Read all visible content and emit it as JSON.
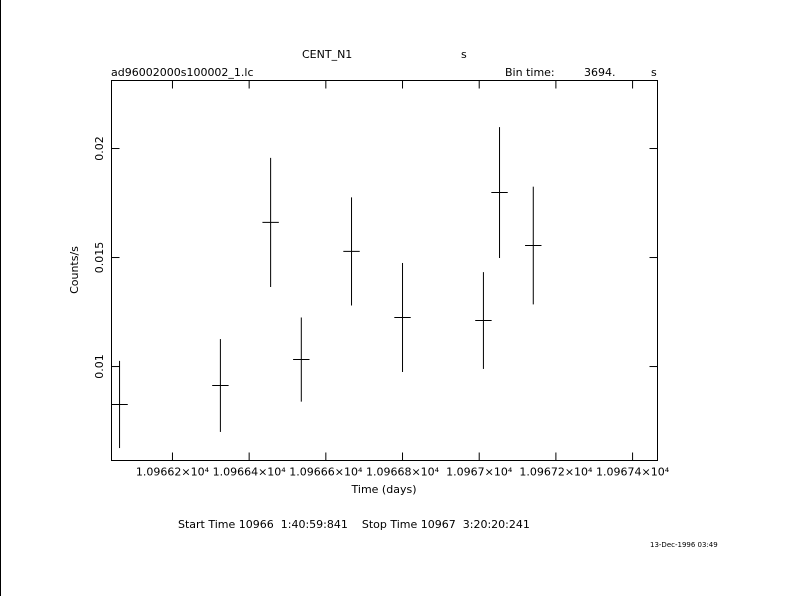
{
  "chart_data": {
    "type": "scatter",
    "header": {
      "object": "CENT_N1",
      "object_unit": "s",
      "file": "ad96002000s100002_1.lc",
      "bin_label": "Bin time:",
      "bin_value": "3694.",
      "bin_unit": "s"
    },
    "xlabel": "Time (days)",
    "ylabel": "Counts/s",
    "footer": "Start Time 10966  1:40:59:841    Stop Time 10967  3:20:20:241",
    "timestamp": "13-Dec-1996 03:49",
    "color": "#000000",
    "x": [
      10966.062,
      10966.325,
      10966.456,
      10966.536,
      10966.667,
      10966.8,
      10967.011,
      10967.053,
      10967.141
    ],
    "xerr": [
      0.0214,
      0.0214,
      0.0214,
      0.0214,
      0.0214,
      0.0214,
      0.0214,
      0.0214,
      0.0214
    ],
    "values": [
      0.00826,
      0.00913,
      0.01661,
      0.01032,
      0.01528,
      0.01225,
      0.01211,
      0.01798,
      0.01555
    ],
    "yerr": [
      0.002,
      0.00213,
      0.00296,
      0.00193,
      0.00248,
      0.0025,
      0.00222,
      0.003,
      0.0027
    ],
    "xlim": [
      10966.041,
      10967.465
    ],
    "ylim": [
      0.00569,
      0.02312
    ],
    "xticks": [
      {
        "value": 10966.2,
        "label": "1.09662×10⁴"
      },
      {
        "value": 10966.4,
        "label": "1.09664×10⁴"
      },
      {
        "value": 10966.6,
        "label": "1.09666×10⁴"
      },
      {
        "value": 10966.8,
        "label": "1.09668×10⁴"
      },
      {
        "value": 10967.0,
        "label": "1.0967×10⁴"
      },
      {
        "value": 10967.2,
        "label": "1.09672×10⁴"
      },
      {
        "value": 10967.4,
        "label": "1.09674×10⁴"
      }
    ],
    "yticks": [
      0.01,
      0.015,
      0.02
    ]
  }
}
